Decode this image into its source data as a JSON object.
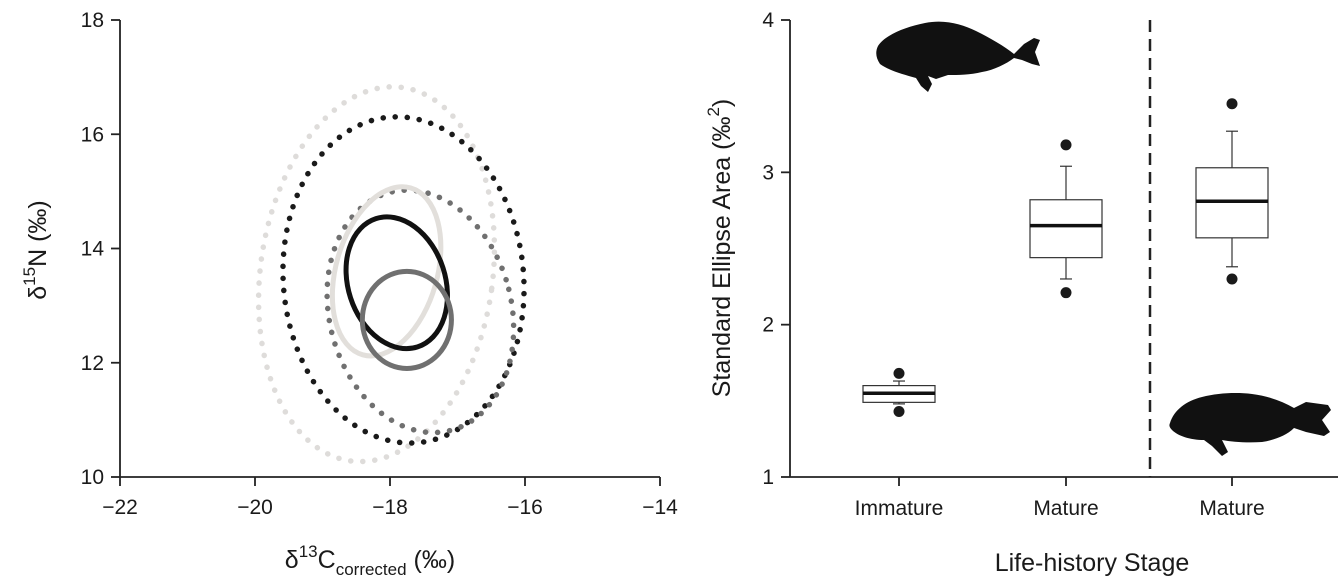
{
  "chart_data": [
    {
      "type": "scatter",
      "subtype": "ellipses",
      "xlabel": {
        "prefix": "δ",
        "sup": "13",
        "main": "C",
        "sub": "corrected",
        "unit": " (‰)"
      },
      "ylabel": {
        "prefix": "δ",
        "sup": "15",
        "main": "N",
        "unit": " (‰)"
      },
      "xlim": [
        -22,
        -14
      ],
      "ylim": [
        10,
        18
      ],
      "xticks": [
        -22,
        -20,
        -18,
        -16,
        -14
      ],
      "xtick_labels": [
        "−22",
        "−20",
        "−18",
        "−16",
        "−14"
      ],
      "yticks": [
        10,
        12,
        14,
        16,
        18
      ],
      "ytick_labels": [
        "10",
        "12",
        "14",
        "16",
        "18"
      ],
      "ellipses": [
        {
          "style": "dotted",
          "color": "#dedcda",
          "cx": -18.2,
          "cy": 13.55,
          "rx": 1.72,
          "ry": 3.3,
          "angle": 8
        },
        {
          "style": "dotted",
          "color": "#1a1a1a",
          "cx": -17.8,
          "cy": 13.45,
          "rx": 1.78,
          "ry": 2.86,
          "angle": -5
        },
        {
          "style": "dotted",
          "color": "#707070",
          "cx": -17.55,
          "cy": 12.9,
          "rx": 1.35,
          "ry": 2.15,
          "angle": -14
        },
        {
          "style": "solid",
          "color": "#e2dfdb",
          "cx": -18.05,
          "cy": 13.6,
          "rx": 0.75,
          "ry": 1.52,
          "angle": 16
        },
        {
          "style": "solid",
          "color": "#111111",
          "cx": -17.9,
          "cy": 13.4,
          "rx": 0.72,
          "ry": 1.18,
          "angle": -18
        },
        {
          "style": "solid",
          "color": "#707070",
          "cx": -17.75,
          "cy": 12.75,
          "rx": 0.66,
          "ry": 0.85,
          "angle": 0
        }
      ]
    },
    {
      "type": "boxplot",
      "xlabel": "Life-history Stage",
      "ylabel": {
        "main": "Standard Ellipse Area (‰",
        "sup": "2",
        "close": ")"
      },
      "ylim": [
        1,
        4
      ],
      "yticks": [
        1,
        2,
        3,
        4
      ],
      "ytick_labels": [
        "1",
        "2",
        "3",
        "4"
      ],
      "categories": [
        "Immature",
        "Mature",
        "Mature"
      ],
      "boxes": [
        {
          "whisker_low": 1.48,
          "q1": 1.49,
          "median": 1.55,
          "q3": 1.6,
          "whisker_high": 1.63,
          "outliers": [
            1.43,
            1.68
          ]
        },
        {
          "whisker_low": 2.3,
          "q1": 2.44,
          "median": 2.65,
          "q3": 2.82,
          "whisker_high": 3.04,
          "outliers": [
            2.21,
            3.18
          ]
        },
        {
          "whisker_low": 2.38,
          "q1": 2.57,
          "median": 2.81,
          "q3": 3.03,
          "whisker_high": 3.27,
          "outliers": [
            2.3,
            3.45
          ]
        }
      ],
      "divider": {
        "between": [
          "Mature",
          "Mature"
        ],
        "style": "dashed"
      },
      "silhouettes": [
        {
          "icon": "fish-silhouette-icon",
          "placement": "top-left",
          "color": "#111111"
        },
        {
          "icon": "fish-silhouette-icon",
          "placement": "bottom-right",
          "color": "#111111"
        }
      ]
    }
  ]
}
